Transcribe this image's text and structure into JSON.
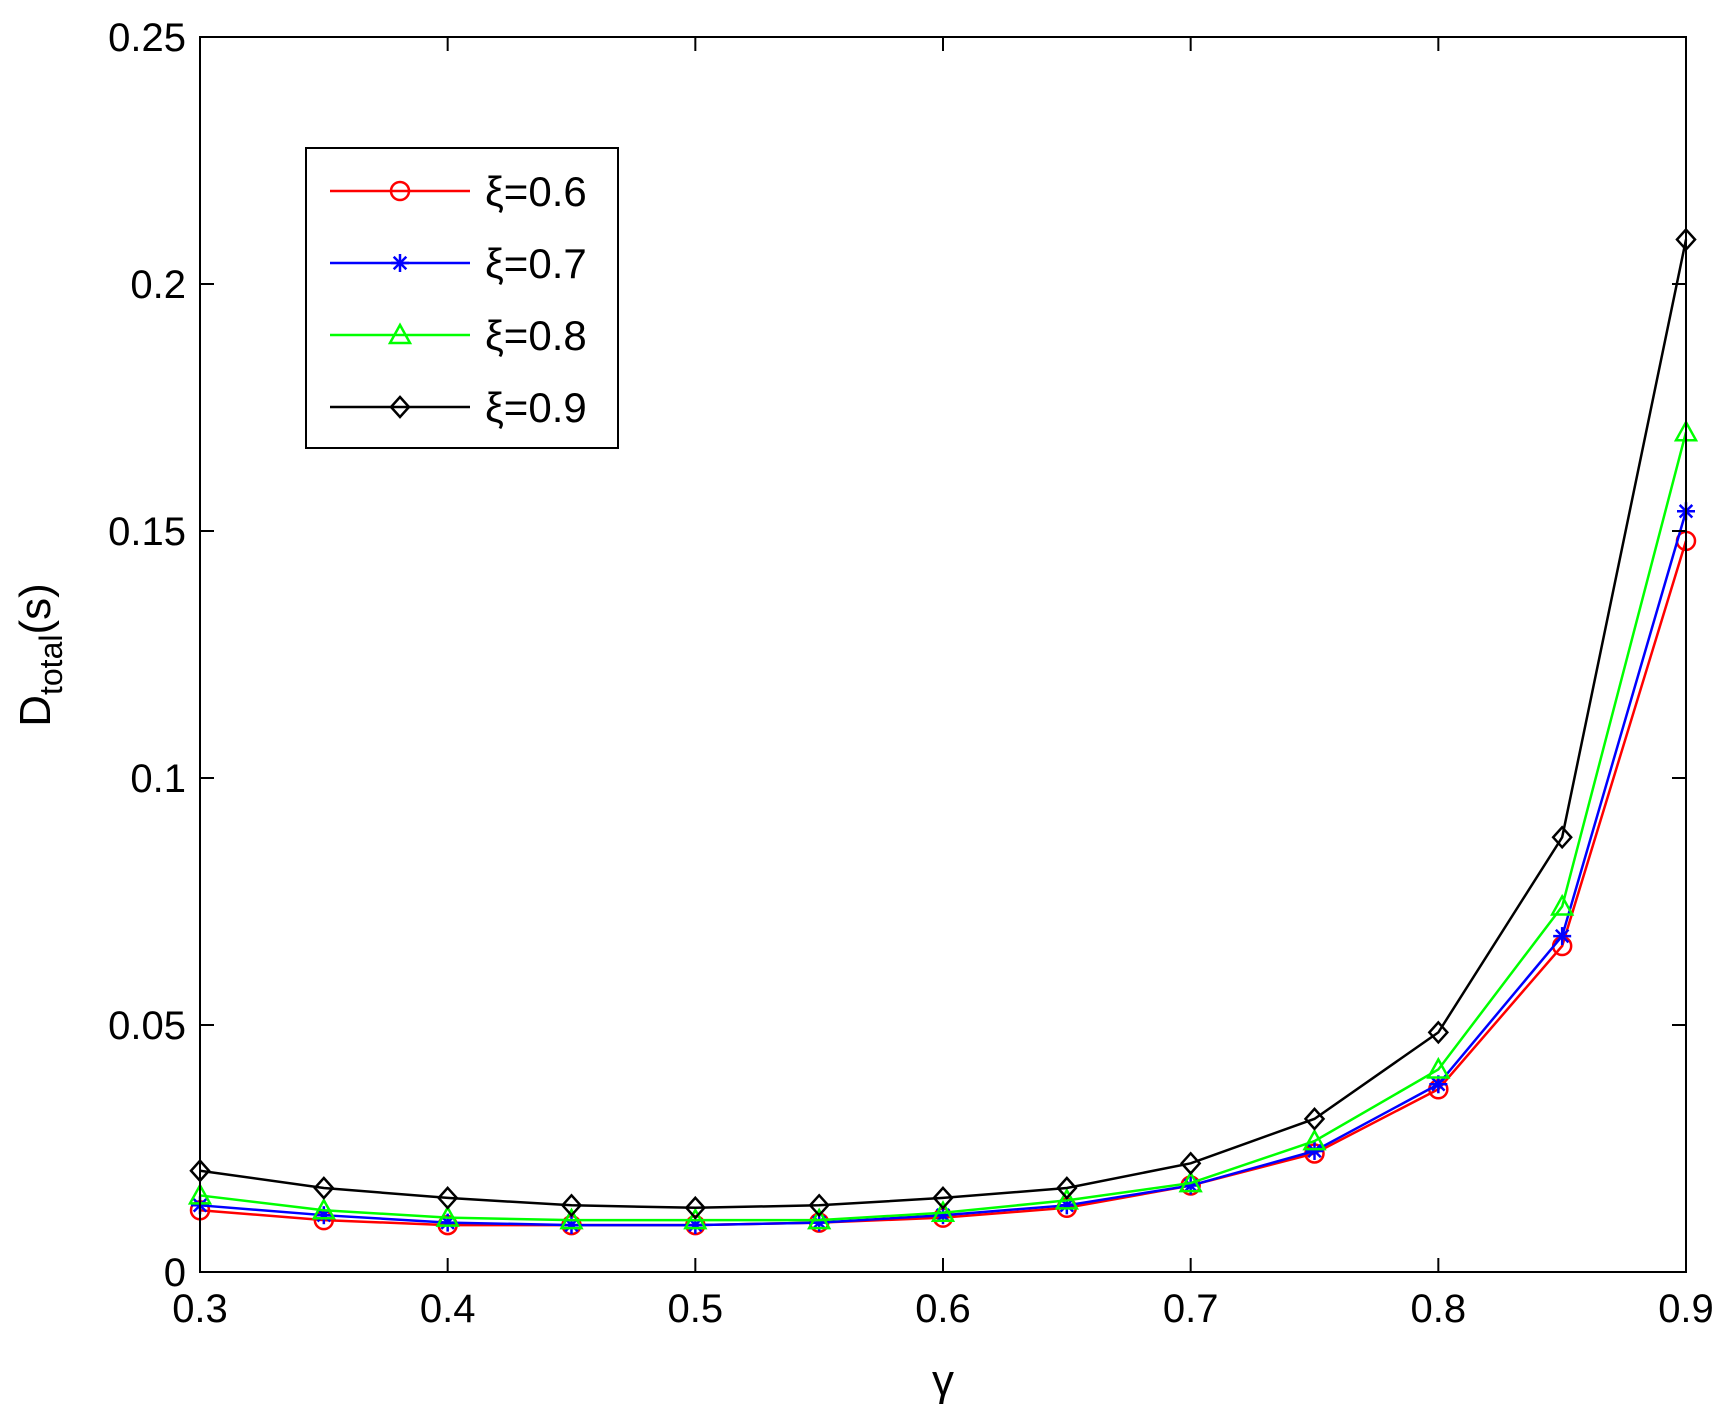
{
  "chart_data": {
    "type": "line",
    "xlabel": "γ",
    "ylabel_main": "D",
    "ylabel_sub": "total",
    "ylabel_suffix": "(s)",
    "xlim": [
      0.3,
      0.9
    ],
    "ylim": [
      0,
      0.25
    ],
    "xticks": [
      "0.3",
      "0.4",
      "0.5",
      "0.6",
      "0.7",
      "0.8",
      "0.9"
    ],
    "yticks": [
      "0",
      "0.05",
      "0.1",
      "0.15",
      "0.2",
      "0.25"
    ],
    "grid": false,
    "legend_position": "top-left",
    "x": [
      0.3,
      0.35,
      0.4,
      0.45,
      0.5,
      0.55,
      0.6,
      0.65,
      0.7,
      0.75,
      0.8,
      0.85,
      0.9
    ],
    "series": [
      {
        "name": "ξ=0.6",
        "color": "#ff0000",
        "marker": "circle",
        "values": [
          0.0125,
          0.0105,
          0.0095,
          0.0095,
          0.0095,
          0.01,
          0.011,
          0.013,
          0.0175,
          0.024,
          0.037,
          0.066,
          0.148
        ]
      },
      {
        "name": "ξ=0.7",
        "color": "#0000ff",
        "marker": "star",
        "values": [
          0.0135,
          0.0115,
          0.01,
          0.0095,
          0.0095,
          0.01,
          0.0115,
          0.0135,
          0.0175,
          0.0245,
          0.038,
          0.068,
          0.154
        ]
      },
      {
        "name": "ξ=0.8",
        "color": "#00ff00",
        "marker": "triangle",
        "values": [
          0.0155,
          0.0125,
          0.011,
          0.0105,
          0.0105,
          0.0105,
          0.012,
          0.0145,
          0.018,
          0.0265,
          0.041,
          0.074,
          0.17
        ]
      },
      {
        "name": "ξ=0.9",
        "color": "#000000",
        "marker": "diamond",
        "values": [
          0.0205,
          0.017,
          0.015,
          0.0135,
          0.013,
          0.0135,
          0.015,
          0.017,
          0.022,
          0.031,
          0.0485,
          0.088,
          0.209
        ]
      }
    ]
  }
}
